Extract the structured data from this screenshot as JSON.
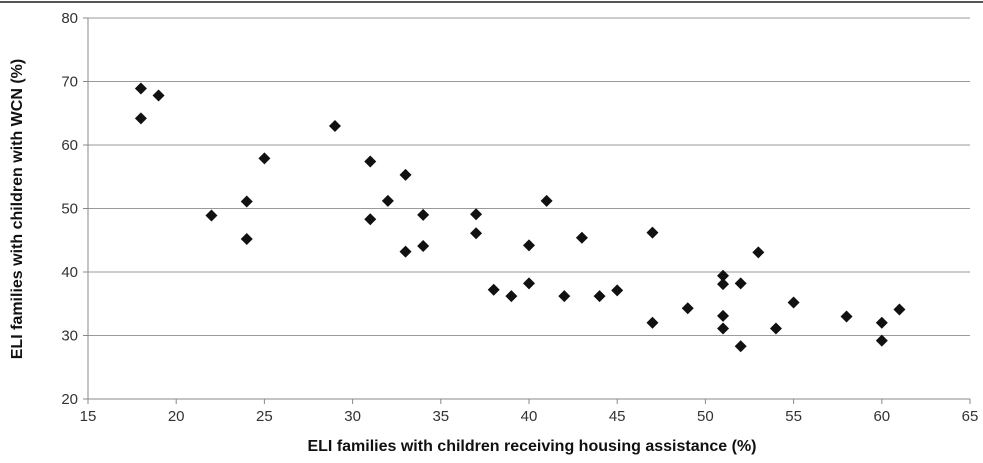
{
  "chart_data": {
    "type": "scatter",
    "title": "",
    "xlabel": "ELI families with children receiving housing assistance (%)",
    "ylabel": "ELI families with children with WCN (%)",
    "xlim": [
      15,
      65
    ],
    "ylim": [
      20,
      80
    ],
    "xticks": [
      15,
      20,
      25,
      30,
      35,
      40,
      45,
      50,
      55,
      60,
      65
    ],
    "yticks": [
      20,
      30,
      40,
      50,
      60,
      70,
      80
    ],
    "x_tick_labels": [
      "15",
      "20",
      "25",
      "30",
      "35",
      "40",
      "45",
      "50",
      "55",
      "60",
      "65"
    ],
    "y_tick_labels": [
      "20",
      "30",
      "40",
      "50",
      "60",
      "70",
      "80"
    ],
    "grid": "horizontal",
    "marker": "diamond",
    "colors": {
      "marker": "#111111",
      "grid": "#9a9a9a",
      "axis": "#888888",
      "frame": "#555555"
    },
    "points": [
      {
        "x": 18,
        "y": 68.9
      },
      {
        "x": 18,
        "y": 64.2
      },
      {
        "x": 19,
        "y": 67.8
      },
      {
        "x": 22,
        "y": 48.9
      },
      {
        "x": 24,
        "y": 51.1
      },
      {
        "x": 24,
        "y": 45.2
      },
      {
        "x": 25,
        "y": 57.9
      },
      {
        "x": 29,
        "y": 63.0
      },
      {
        "x": 31,
        "y": 57.4
      },
      {
        "x": 31,
        "y": 48.3
      },
      {
        "x": 32,
        "y": 51.2
      },
      {
        "x": 33,
        "y": 55.3
      },
      {
        "x": 33,
        "y": 43.2
      },
      {
        "x": 34,
        "y": 49.0
      },
      {
        "x": 34,
        "y": 44.1
      },
      {
        "x": 37,
        "y": 49.1
      },
      {
        "x": 37,
        "y": 46.1
      },
      {
        "x": 38,
        "y": 37.2
      },
      {
        "x": 39,
        "y": 36.2
      },
      {
        "x": 40,
        "y": 44.2
      },
      {
        "x": 40,
        "y": 38.2
      },
      {
        "x": 41,
        "y": 51.2
      },
      {
        "x": 42,
        "y": 36.2
      },
      {
        "x": 43,
        "y": 45.4
      },
      {
        "x": 44,
        "y": 36.2
      },
      {
        "x": 45,
        "y": 37.1
      },
      {
        "x": 47,
        "y": 46.2
      },
      {
        "x": 47,
        "y": 32.0
      },
      {
        "x": 49,
        "y": 34.3
      },
      {
        "x": 51,
        "y": 39.4
      },
      {
        "x": 51,
        "y": 38.1
      },
      {
        "x": 51,
        "y": 33.1
      },
      {
        "x": 51,
        "y": 31.1
      },
      {
        "x": 52,
        "y": 38.2
      },
      {
        "x": 52,
        "y": 28.3
      },
      {
        "x": 53,
        "y": 43.1
      },
      {
        "x": 54,
        "y": 31.1
      },
      {
        "x": 55,
        "y": 35.2
      },
      {
        "x": 58,
        "y": 33.0
      },
      {
        "x": 60,
        "y": 32.0
      },
      {
        "x": 60,
        "y": 29.2
      },
      {
        "x": 61,
        "y": 34.1
      }
    ]
  }
}
